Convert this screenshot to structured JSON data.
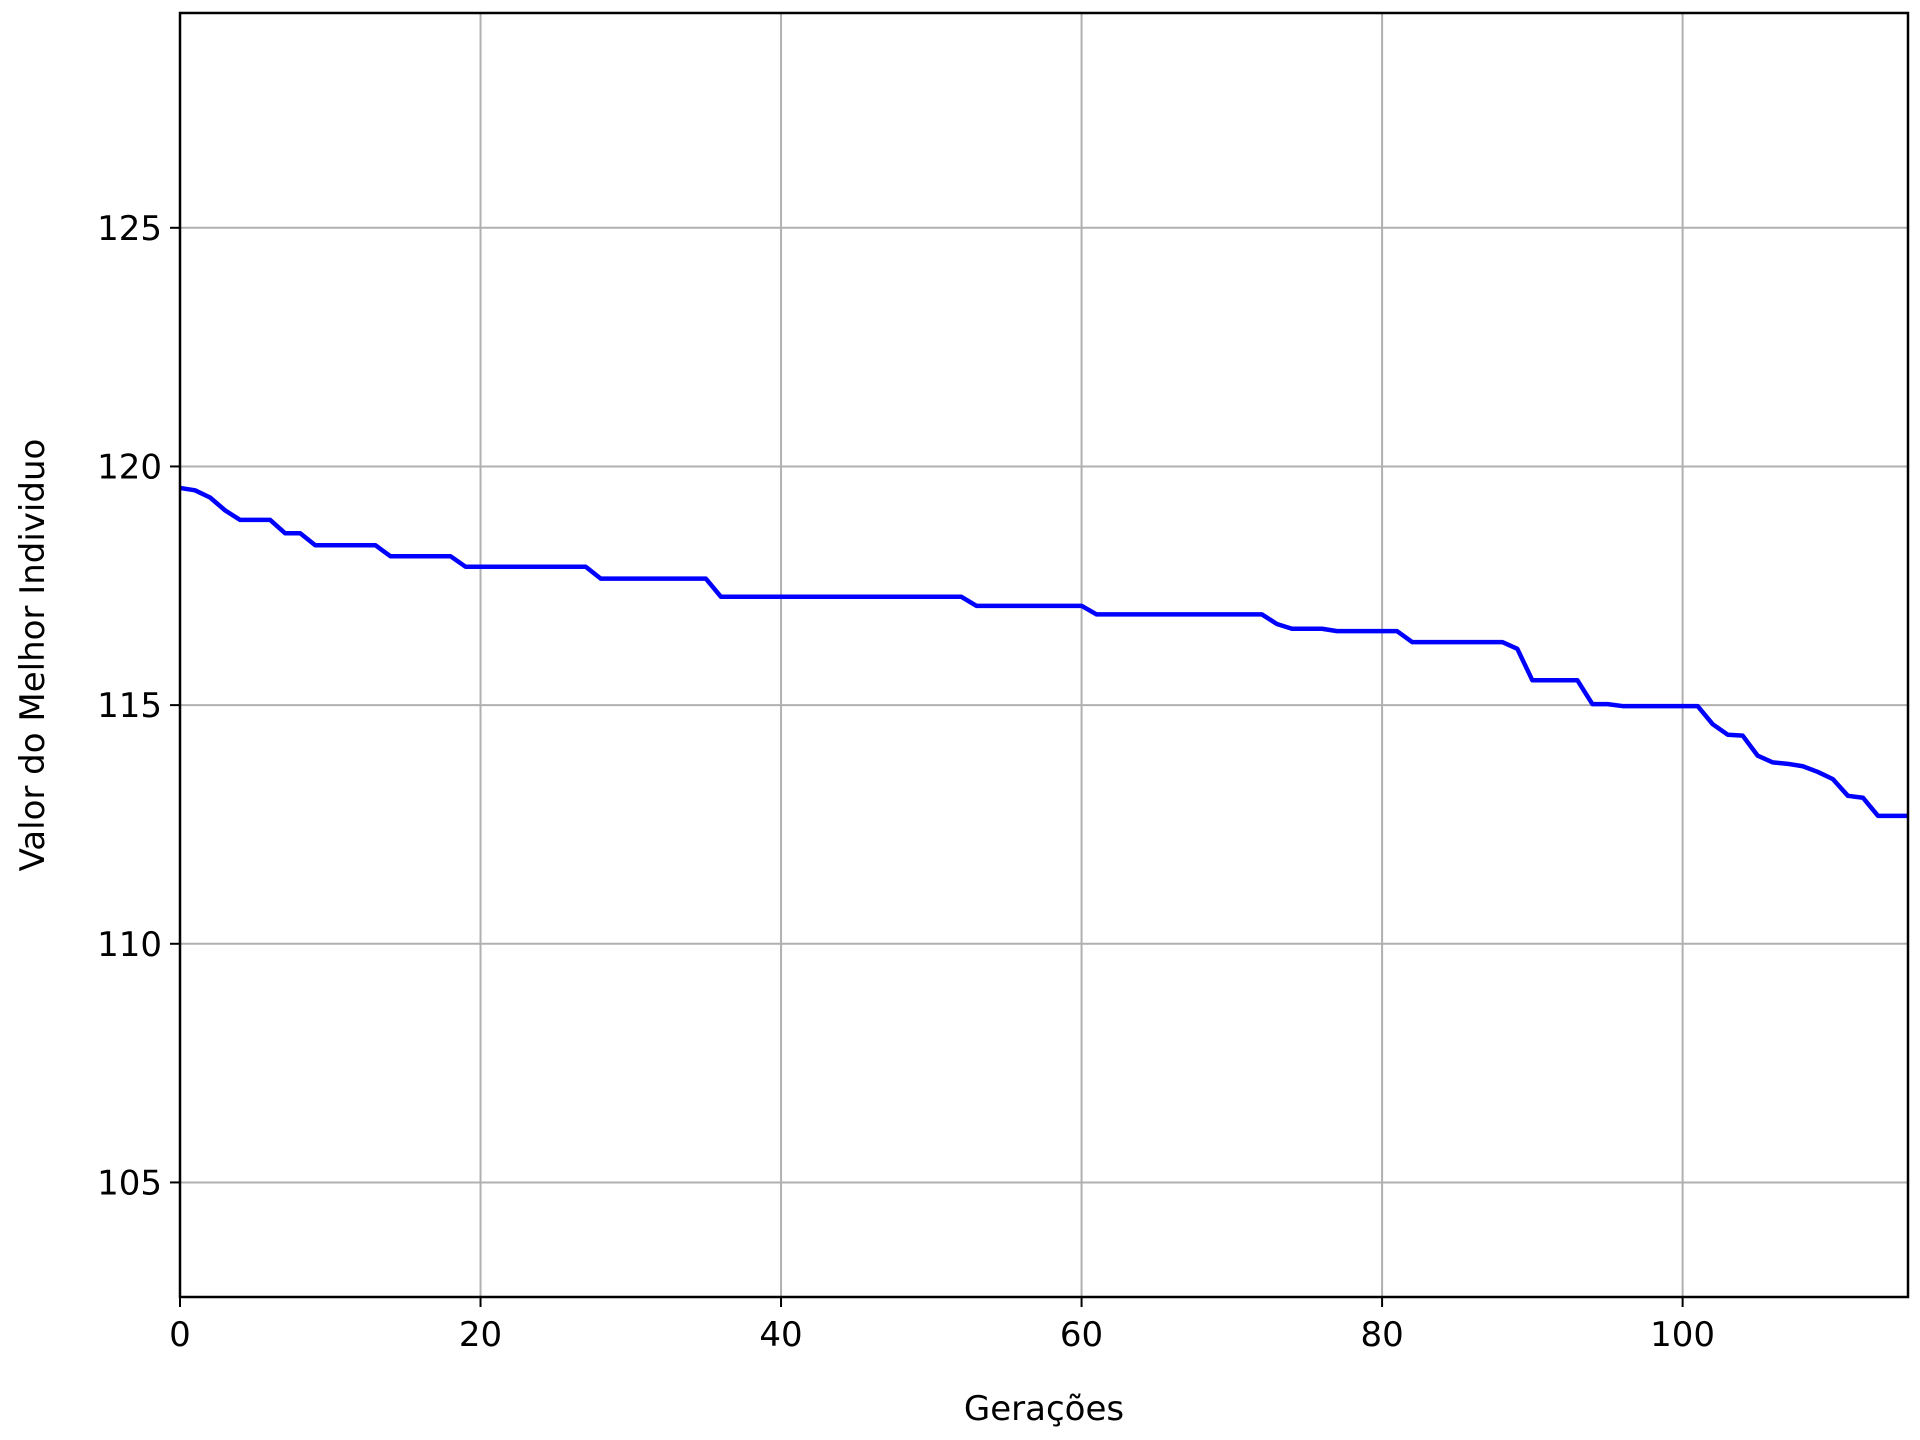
{
  "chart_data": {
    "type": "line",
    "title": "",
    "xlabel": "Gerações",
    "ylabel": "Valor do Melhor Individuo",
    "xlim": [
      0,
      115
    ],
    "ylim": [
      102.6,
      129.5
    ],
    "xticks": [
      0,
      20,
      40,
      60,
      80,
      100
    ],
    "yticks": [
      105,
      110,
      115,
      120,
      125
    ],
    "grid": true,
    "series": [
      {
        "color": "#0000ff",
        "x": [
          0,
          1,
          2,
          3,
          4,
          5,
          6,
          7,
          8,
          9,
          10,
          11,
          12,
          13,
          14,
          15,
          16,
          17,
          18,
          19,
          20,
          21,
          22,
          23,
          24,
          25,
          26,
          27,
          28,
          29,
          30,
          31,
          32,
          33,
          34,
          35,
          36,
          37,
          38,
          39,
          40,
          41,
          42,
          43,
          44,
          45,
          46,
          47,
          48,
          49,
          50,
          51,
          52,
          53,
          54,
          55,
          56,
          57,
          58,
          59,
          60,
          61,
          62,
          63,
          64,
          65,
          66,
          67,
          68,
          69,
          70,
          71,
          72,
          73,
          74,
          75,
          76,
          77,
          78,
          79,
          80,
          81,
          82,
          83,
          84,
          85,
          86,
          87,
          88,
          89,
          90,
          91,
          92,
          93,
          94,
          95,
          96,
          97,
          98,
          99,
          100,
          101,
          102,
          103,
          104,
          105,
          106,
          107,
          108,
          109,
          110,
          111,
          112,
          113,
          114,
          115
        ],
        "y": [
          119.55,
          119.5,
          119.35,
          119.08,
          118.88,
          118.88,
          118.88,
          118.6,
          118.6,
          118.35,
          118.35,
          118.35,
          118.35,
          118.35,
          118.12,
          118.12,
          118.12,
          118.12,
          118.12,
          117.9,
          117.9,
          117.9,
          117.9,
          117.9,
          117.9,
          117.9,
          117.9,
          117.9,
          117.65,
          117.65,
          117.65,
          117.65,
          117.65,
          117.65,
          117.65,
          117.65,
          117.27,
          117.27,
          117.27,
          117.27,
          117.27,
          117.27,
          117.27,
          117.27,
          117.27,
          117.27,
          117.27,
          117.27,
          117.27,
          117.27,
          117.27,
          117.27,
          117.27,
          117.08,
          117.08,
          117.08,
          117.08,
          117.08,
          117.08,
          117.08,
          117.08,
          116.9,
          116.9,
          116.9,
          116.9,
          116.9,
          116.9,
          116.9,
          116.9,
          116.9,
          116.9,
          116.9,
          116.9,
          116.7,
          116.6,
          116.6,
          116.6,
          116.55,
          116.55,
          116.55,
          116.55,
          116.55,
          116.32,
          116.32,
          116.32,
          116.32,
          116.32,
          116.32,
          116.32,
          116.18,
          115.52,
          115.52,
          115.52,
          115.52,
          115.02,
          115.02,
          114.98,
          114.98,
          114.98,
          114.98,
          114.98,
          114.98,
          114.6,
          114.38,
          114.36,
          113.94,
          113.8,
          113.77,
          113.72,
          113.6,
          113.45,
          113.1,
          113.06,
          112.68,
          112.68,
          112.68
        ]
      }
    ]
  }
}
